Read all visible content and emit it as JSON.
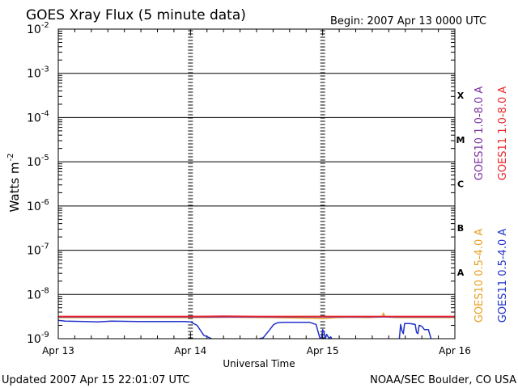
{
  "chart_data": {
    "type": "line",
    "title": "GOES Xray Flux (5 minute data)",
    "begin": "Begin:  2007 Apr 13 0000 UTC",
    "xlabel": "Universal Time",
    "ylabel": "Watts m",
    "ylabel_sup": "-2",
    "scale": "log",
    "ylim": [
      1e-09,
      0.01
    ],
    "xlim": [
      0,
      3
    ],
    "x_unit": "days since 2007 Apr 13 0000 UTC",
    "x_ticks": [
      {
        "value": 0,
        "label": "Apr 13"
      },
      {
        "value": 1,
        "label": "Apr 14"
      },
      {
        "value": 2,
        "label": "Apr 15"
      },
      {
        "value": 3,
        "label": "Apr 16"
      }
    ],
    "y_ticks": [
      {
        "value": 0.01,
        "base": "10",
        "exp": "-2"
      },
      {
        "value": 0.001,
        "base": "10",
        "exp": "-3"
      },
      {
        "value": 0.0001,
        "base": "10",
        "exp": "-4"
      },
      {
        "value": 1e-05,
        "base": "10",
        "exp": "-5"
      },
      {
        "value": 1e-06,
        "base": "10",
        "exp": "-6"
      },
      {
        "value": 1e-07,
        "base": "10",
        "exp": "-7"
      },
      {
        "value": 1e-08,
        "base": "10",
        "exp": "-8"
      },
      {
        "value": 1e-09,
        "base": "10",
        "exp": "-9"
      }
    ],
    "flare_classes": [
      {
        "label": "X",
        "low": 0.0001,
        "high": 0.001
      },
      {
        "label": "M",
        "low": 1e-05,
        "high": 0.0001
      },
      {
        "label": "C",
        "low": 1e-06,
        "high": 1e-05
      },
      {
        "label": "B",
        "low": 1e-07,
        "high": 1e-06
      },
      {
        "label": "A",
        "low": 1e-08,
        "high": 1e-07
      }
    ],
    "grid": true,
    "legend_placement": "right",
    "series": [
      {
        "name": "GOES10 1.0-8.0 A",
        "color": "#7f30a0",
        "x": [
          0,
          3
        ],
        "y": [
          3.1e-09,
          3.1e-09
        ]
      },
      {
        "name": "GOES11 1.0-8.0 A",
        "color": "#e8262a",
        "x": [
          0,
          0.25,
          0.5,
          0.75,
          1.0,
          1.25,
          1.5,
          1.75,
          2.0,
          2.25,
          2.5,
          2.75,
          3.0
        ],
        "y": [
          3.2e-09,
          3.2e-09,
          3.2e-09,
          3.2e-09,
          3.2e-09,
          3.25e-09,
          3.2e-09,
          3.2e-09,
          3.2e-09,
          3.2e-09,
          3.2e-09,
          3.2e-09,
          3.2e-09
        ]
      },
      {
        "name": "GOES10 0.5-4.0 A",
        "color": "#e8a020",
        "x": [
          0,
          0.5,
          1.0,
          1.3,
          1.6,
          1.95,
          2.0,
          2.1,
          2.2,
          2.35,
          2.45,
          2.46,
          2.47,
          2.55,
          2.75,
          3.0
        ],
        "y": [
          3e-09,
          3e-09,
          3e-09,
          3.05e-09,
          3e-09,
          2.9e-09,
          2.85e-09,
          3e-09,
          3.05e-09,
          3e-09,
          3.1e-09,
          3.8e-09,
          3.1e-09,
          3e-09,
          3e-09,
          3e-09
        ]
      },
      {
        "name": "GOES11 0.5-4.0 A",
        "color": "#2030c8",
        "segments": [
          {
            "x": [
              0.0,
              0.05,
              0.2,
              0.3,
              0.35,
              0.4,
              0.6,
              0.8,
              0.95,
              1.0,
              1.05,
              1.1,
              1.16
            ],
            "y": [
              2.6e-09,
              2.5e-09,
              2.45e-09,
              2.4e-09,
              2.45e-09,
              2.5e-09,
              2.45e-09,
              2.45e-09,
              2.45e-09,
              2.4e-09,
              2e-09,
              1.2e-09,
              8e-10
            ]
          },
          {
            "x": [
              1.52,
              1.55,
              1.6,
              1.63,
              1.66,
              1.7,
              1.8,
              1.9,
              1.95,
              1.98
            ],
            "y": [
              8e-10,
              1.05e-09,
              1.6e-09,
              2.1e-09,
              2.3e-09,
              2.35e-09,
              2.35e-09,
              2.35e-09,
              2.1e-09,
              8e-10
            ]
          },
          {
            "x": [
              1.99,
              2.0,
              2.01,
              2.02,
              2.03,
              2.05,
              2.06,
              2.07
            ],
            "y": [
              8e-10,
              1.6e-09,
              1.4e-09,
              9e-10,
              1.25e-09,
              9e-10,
              1.1e-09,
              8e-10
            ]
          },
          {
            "x": [
              2.58,
              2.59,
              2.6,
              2.61,
              2.62,
              2.66,
              2.7,
              2.71,
              2.72,
              2.73,
              2.75,
              2.77,
              2.8,
              2.82
            ],
            "y": [
              8e-10,
              2.1e-09,
              1.5e-09,
              1.3e-09,
              2.2e-09,
              2.2e-09,
              2.1e-09,
              1.4e-09,
              1.3e-09,
              2e-09,
              1.9e-09,
              1.6e-09,
              1.6e-09,
              8e-10
            ]
          }
        ]
      }
    ]
  },
  "footer": {
    "updated": "Updated 2007 Apr 15 22:01:07 UTC",
    "source": "NOAA/SEC Boulder, CO USA"
  }
}
